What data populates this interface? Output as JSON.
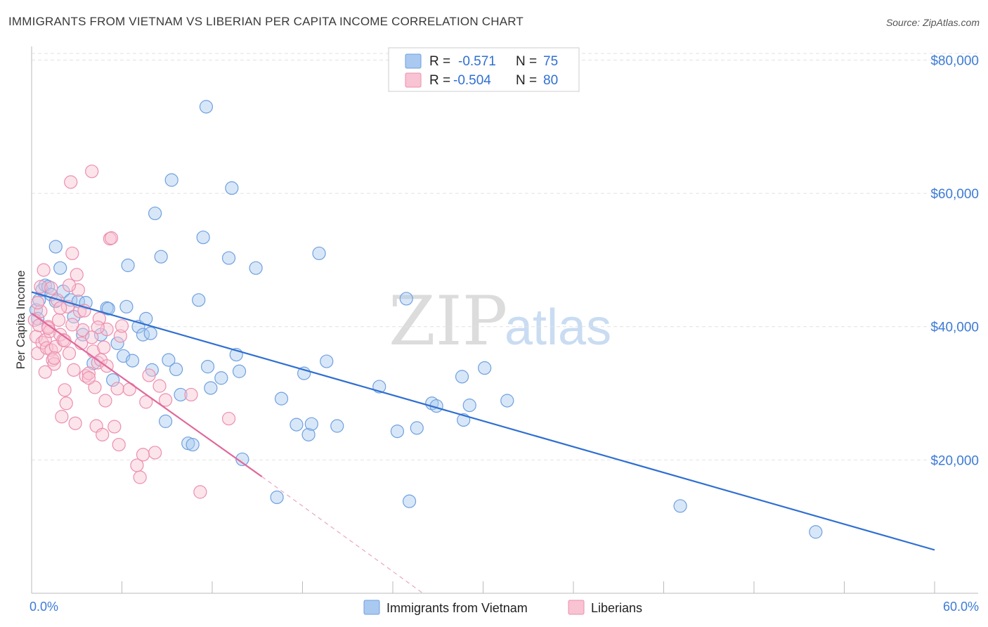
{
  "title": "IMMIGRANTS FROM VIETNAM VS LIBERIAN PER CAPITA INCOME CORRELATION CHART",
  "source": "Source: ZipAtlas.com",
  "watermark": {
    "zip": "ZIP",
    "atlas": "atlas"
  },
  "legend": {
    "r_label": "R =",
    "n_label": "N =",
    "rows": [
      {
        "r": "-0.571",
        "n": "75",
        "color": "#a9c9f0",
        "stroke": "#6fa0e0"
      },
      {
        "r": "-0.504",
        "n": "80",
        "color": "#f8c3d3",
        "stroke": "#ec8fae"
      }
    ]
  },
  "chart_data": {
    "type": "scatter",
    "title": "IMMIGRANTS FROM VIETNAM VS LIBERIAN PER CAPITA INCOME CORRELATION CHART",
    "xlabel": "",
    "ylabel": "Per Capita Income",
    "xlim": [
      0,
      60
    ],
    "ylim": [
      0,
      81000
    ],
    "x_tick_labels": [
      "0.0%",
      "60.0%"
    ],
    "y_ticks": [
      20000,
      40000,
      60000,
      80000
    ],
    "y_tick_labels": [
      "$20,000",
      "$40,000",
      "$60,000",
      "$80,000"
    ],
    "grid": true,
    "legend_position": "top-center",
    "series": [
      {
        "name": "Immigrants from Vietnam",
        "color": "#a9c9f0",
        "stroke": "#6fa0e0",
        "line_color": "#2f6fd1",
        "trend": {
          "x0": 0,
          "y0": 45200,
          "x1": 60,
          "y1": 6500
        },
        "points": [
          [
            0.3,
            42500
          ],
          [
            0.5,
            44000
          ],
          [
            0.7,
            45500
          ],
          [
            0.9,
            46200
          ],
          [
            1.1,
            46000
          ],
          [
            1.3,
            44800
          ],
          [
            1.6,
            52000
          ],
          [
            1.9,
            48800
          ],
          [
            2.1,
            45300
          ],
          [
            2.6,
            44000
          ],
          [
            3.1,
            43800
          ],
          [
            3.6,
            43600
          ],
          [
            1.6,
            43800
          ],
          [
            2.8,
            41500
          ],
          [
            3.4,
            38800
          ],
          [
            4.1,
            34500
          ],
          [
            4.6,
            38800
          ],
          [
            5.0,
            42800
          ],
          [
            5.1,
            42700
          ],
          [
            5.4,
            32000
          ],
          [
            5.7,
            37500
          ],
          [
            6.1,
            35600
          ],
          [
            6.3,
            43000
          ],
          [
            6.4,
            49200
          ],
          [
            6.7,
            34900
          ],
          [
            7.1,
            40000
          ],
          [
            7.4,
            38800
          ],
          [
            7.6,
            41200
          ],
          [
            7.9,
            39000
          ],
          [
            8.0,
            33500
          ],
          [
            8.2,
            57000
          ],
          [
            8.6,
            50500
          ],
          [
            8.9,
            25800
          ],
          [
            9.1,
            35000
          ],
          [
            9.3,
            62000
          ],
          [
            9.6,
            33600
          ],
          [
            9.9,
            29800
          ],
          [
            10.4,
            22500
          ],
          [
            10.7,
            22300
          ],
          [
            11.1,
            44000
          ],
          [
            11.4,
            53400
          ],
          [
            11.6,
            73000
          ],
          [
            11.7,
            34000
          ],
          [
            11.9,
            30800
          ],
          [
            12.6,
            32300
          ],
          [
            13.1,
            50300
          ],
          [
            13.3,
            60800
          ],
          [
            13.6,
            35800
          ],
          [
            13.8,
            33300
          ],
          [
            14.0,
            20100
          ],
          [
            14.9,
            48800
          ],
          [
            16.3,
            14400
          ],
          [
            16.6,
            29200
          ],
          [
            17.6,
            25300
          ],
          [
            18.1,
            33000
          ],
          [
            18.4,
            23800
          ],
          [
            18.6,
            25400
          ],
          [
            19.1,
            51000
          ],
          [
            19.6,
            34800
          ],
          [
            20.3,
            25100
          ],
          [
            23.1,
            31000
          ],
          [
            24.3,
            24300
          ],
          [
            24.9,
            44200
          ],
          [
            25.1,
            13800
          ],
          [
            25.6,
            24800
          ],
          [
            26.6,
            28500
          ],
          [
            26.9,
            28100
          ],
          [
            28.6,
            32500
          ],
          [
            28.7,
            26000
          ],
          [
            29.1,
            28200
          ],
          [
            30.1,
            33800
          ],
          [
            31.6,
            28900
          ],
          [
            43.1,
            13100
          ],
          [
            52.1,
            9200
          ],
          [
            0.4,
            41200
          ]
        ]
      },
      {
        "name": "Liberians",
        "color": "#f8c3d3",
        "stroke": "#ec8fae",
        "line_color": "#e0699a",
        "trend": {
          "x0": 0,
          "y0": 42000,
          "x1": 15.3,
          "y1": 17500
        },
        "trend_dashed": {
          "x0": 15.3,
          "y0": 17500,
          "x1": 26,
          "y1": 0
        },
        "points": [
          [
            0.2,
            41000
          ],
          [
            0.3,
            38500
          ],
          [
            0.4,
            36000
          ],
          [
            0.5,
            40200
          ],
          [
            0.6,
            42300
          ],
          [
            0.7,
            37600
          ],
          [
            0.8,
            48500
          ],
          [
            0.9,
            38000
          ],
          [
            1.0,
            36800
          ],
          [
            1.1,
            40000
          ],
          [
            1.2,
            39300
          ],
          [
            1.3,
            36500
          ],
          [
            1.4,
            35000
          ],
          [
            1.5,
            34400
          ],
          [
            1.6,
            37000
          ],
          [
            1.7,
            44000
          ],
          [
            1.8,
            41000
          ],
          [
            1.9,
            38800
          ],
          [
            2.0,
            26500
          ],
          [
            2.1,
            38000
          ],
          [
            2.2,
            30500
          ],
          [
            2.3,
            28500
          ],
          [
            2.4,
            43000
          ],
          [
            2.5,
            36000
          ],
          [
            2.6,
            61700
          ],
          [
            2.7,
            51000
          ],
          [
            2.8,
            33500
          ],
          [
            2.9,
            25500
          ],
          [
            3.0,
            47800
          ],
          [
            3.1,
            45500
          ],
          [
            3.2,
            42300
          ],
          [
            3.3,
            37500
          ],
          [
            3.4,
            39500
          ],
          [
            3.6,
            32600
          ],
          [
            3.8,
            33000
          ],
          [
            4.0,
            63300
          ],
          [
            4.1,
            36300
          ],
          [
            4.2,
            30900
          ],
          [
            4.3,
            25100
          ],
          [
            4.4,
            34600
          ],
          [
            4.5,
            41200
          ],
          [
            4.6,
            35000
          ],
          [
            4.7,
            23800
          ],
          [
            4.8,
            36900
          ],
          [
            4.9,
            28900
          ],
          [
            5.0,
            39600
          ],
          [
            5.2,
            53200
          ],
          [
            5.3,
            53300
          ],
          [
            5.5,
            25000
          ],
          [
            5.7,
            30700
          ],
          [
            5.8,
            22300
          ],
          [
            5.9,
            38600
          ],
          [
            6.0,
            40100
          ],
          [
            6.5,
            30600
          ],
          [
            7.0,
            19200
          ],
          [
            7.2,
            17400
          ],
          [
            7.4,
            20800
          ],
          [
            7.6,
            28700
          ],
          [
            7.8,
            32700
          ],
          [
            8.2,
            21100
          ],
          [
            8.5,
            31100
          ],
          [
            8.9,
            29000
          ],
          [
            10.6,
            29800
          ],
          [
            11.2,
            15200
          ],
          [
            13.1,
            26200
          ],
          [
            0.6,
            46000
          ],
          [
            1.3,
            45800
          ],
          [
            2.5,
            46200
          ],
          [
            3.5,
            42400
          ],
          [
            4.4,
            39900
          ],
          [
            5.0,
            34100
          ],
          [
            1.5,
            35300
          ],
          [
            0.9,
            33200
          ],
          [
            2.2,
            37900
          ],
          [
            3.8,
            32300
          ],
          [
            0.4,
            43600
          ],
          [
            1.9,
            42800
          ],
          [
            4.0,
            38400
          ],
          [
            2.7,
            40300
          ],
          [
            1.1,
            39800
          ]
        ]
      }
    ]
  }
}
